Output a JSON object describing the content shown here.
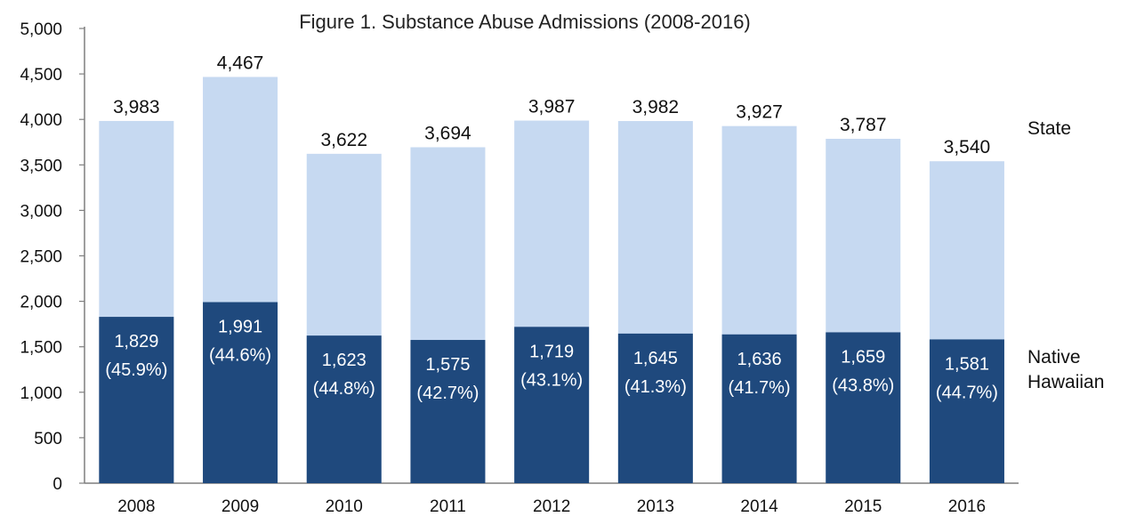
{
  "chart_data": {
    "type": "bar",
    "stacked": true,
    "title": "Figure 1. Substance Abuse Admissions (2008-2016)",
    "categories": [
      "2008",
      "2009",
      "2010",
      "2011",
      "2012",
      "2013",
      "2014",
      "2015",
      "2016"
    ],
    "series": [
      {
        "name": "Native Hawaiian",
        "values": [
          1829,
          1991,
          1623,
          1575,
          1719,
          1645,
          1636,
          1659,
          1581
        ],
        "value_labels": [
          "1,829",
          "1,991",
          "1,623",
          "1,575",
          "1,719",
          "1,645",
          "1,636",
          "1,659",
          "1,581"
        ],
        "percent_labels": [
          "(45.9%)",
          "(44.6%)",
          "(44.8%)",
          "(42.7%)",
          "(43.1%)",
          "(41.3%)",
          "(41.7%)",
          "(43.8%)",
          "(44.7%)"
        ],
        "color": "#1f497d"
      },
      {
        "name": "State",
        "totals": [
          3983,
          4467,
          3622,
          3694,
          3987,
          3982,
          3927,
          3787,
          3540
        ],
        "total_labels": [
          "3,983",
          "4,467",
          "3,622",
          "3,694",
          "3,987",
          "3,982",
          "3,927",
          "3,787",
          "3,540"
        ],
        "color": "#c6d9f1"
      }
    ],
    "ylim": [
      0,
      5000
    ],
    "y_ticks": [
      0,
      500,
      1000,
      1500,
      2000,
      2500,
      3000,
      3500,
      4000,
      4500,
      5000
    ],
    "y_tick_labels": [
      "0",
      "500",
      "1,000",
      "1,500",
      "2,000",
      "2,500",
      "3,000",
      "3,500",
      "4,000",
      "4,500",
      "5,000"
    ],
    "series_labels": {
      "state": "State",
      "native_hawaiian_line1": "Native",
      "native_hawaiian_line2": "Hawaiian"
    },
    "grid": false,
    "legend": "right"
  }
}
